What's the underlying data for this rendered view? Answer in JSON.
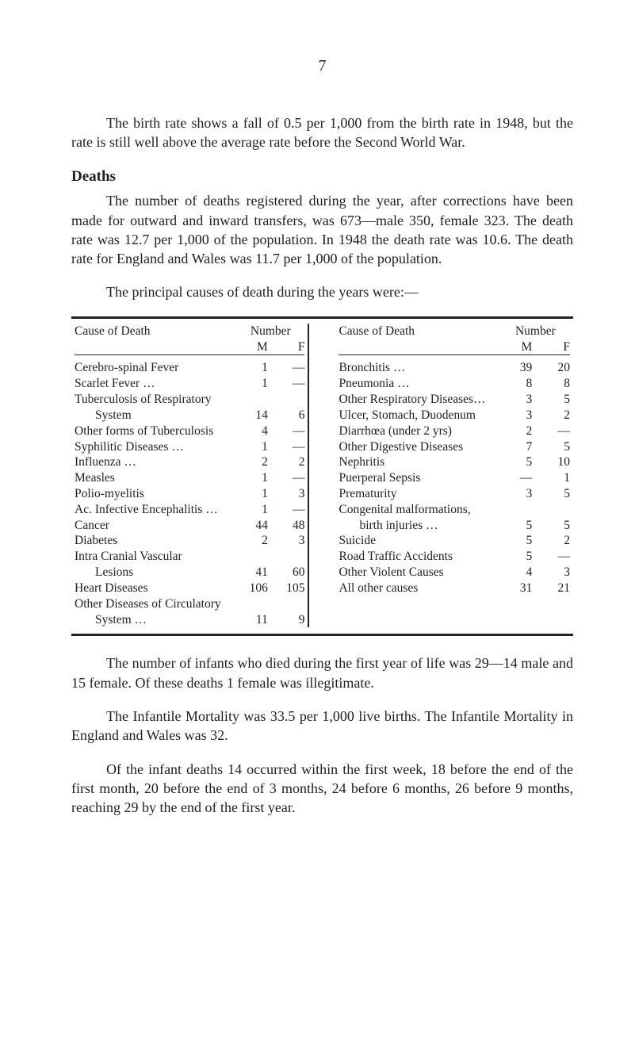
{
  "page_number": "7",
  "para1": "The birth rate shows a fall of 0.5 per 1,000 from the birth rate in 1948, but the rate is still well above the average rate before the Second World War.",
  "deaths_heading": "Deaths",
  "para2": "The number of deaths registered during the year, after corrections have been made for outward and inward transfers, was 673—male 350, female 323. The death rate was 12.7 per 1,000 of the population. In 1948 the death rate was 10.6. The death rate for England and Wales was 11.7 per 1,000 of the population.",
  "para3": "The principal causes of death during the years were:—",
  "table": {
    "dash": "—",
    "head_cause": "Cause of Death",
    "head_number": "Number",
    "head_M": "M",
    "head_F": "F",
    "left": [
      {
        "label": "Cerebro-spinal Fever",
        "m": "1",
        "f": "—"
      },
      {
        "label": "Scarlet Fever …",
        "m": "1",
        "f": "—"
      },
      {
        "label": "Tuberculosis of Respiratory",
        "m": "",
        "f": ""
      },
      {
        "label": "System",
        "sub": true,
        "m": "14",
        "f": "6"
      },
      {
        "label": "Other forms of Tuberculosis",
        "m": "4",
        "f": "—"
      },
      {
        "label": "Syphilitic Diseases …",
        "m": "1",
        "f": "—"
      },
      {
        "label": "Influenza …",
        "m": "2",
        "f": "2"
      },
      {
        "label": "Measles",
        "m": "1",
        "f": "—"
      },
      {
        "label": "Polio-myelitis",
        "m": "1",
        "f": "3"
      },
      {
        "label": "Ac. Infective Encephalitis …",
        "m": "1",
        "f": "—"
      },
      {
        "label": "Cancer",
        "m": "44",
        "f": "48"
      },
      {
        "label": "Diabetes",
        "m": "2",
        "f": "3"
      },
      {
        "label": "Intra Cranial Vascular",
        "m": "",
        "f": ""
      },
      {
        "label": "Lesions",
        "sub": true,
        "m": "41",
        "f": "60"
      },
      {
        "label": "Heart Diseases",
        "m": "106",
        "f": "105"
      },
      {
        "label": "Other Diseases of Circulatory",
        "m": "",
        "f": ""
      },
      {
        "label": "System …",
        "sub": true,
        "m": "11",
        "f": "9"
      }
    ],
    "right": [
      {
        "label": "Bronchitis …",
        "m": "39",
        "f": "20"
      },
      {
        "label": "Pneumonia …",
        "m": "8",
        "f": "8"
      },
      {
        "label": "Other Respiratory Diseases…",
        "m": "3",
        "f": "5"
      },
      {
        "label": "Ulcer, Stomach, Duodenum",
        "m": "3",
        "f": "2"
      },
      {
        "label": "Diarrhœa (under 2 yrs)",
        "m": "2",
        "f": "—"
      },
      {
        "label": "Other Digestive Diseases",
        "m": "7",
        "f": "5"
      },
      {
        "label": "Nephritis",
        "m": "5",
        "f": "10"
      },
      {
        "label": "Puerperal Sepsis",
        "m": "—",
        "f": "1"
      },
      {
        "label": "Prematurity",
        "m": "3",
        "f": "5"
      },
      {
        "label": "Congenital malformations,",
        "m": "",
        "f": ""
      },
      {
        "label": "birth injuries …",
        "sub": true,
        "m": "5",
        "f": "5"
      },
      {
        "label": "Suicide",
        "m": "5",
        "f": "2"
      },
      {
        "label": "Road Traffic Accidents",
        "m": "5",
        "f": "—"
      },
      {
        "label": "Other Violent Causes",
        "m": "4",
        "f": "3"
      },
      {
        "label": "All other causes",
        "m": "31",
        "f": "21"
      }
    ]
  },
  "para4": "The number of infants who died during the first year of life was 29—14 male and 15 female. Of these deaths 1 female was illegitimate.",
  "para5": "The Infantile Mortality was 33.5 per 1,000 live births. The Infantile Mortality in England and Wales was 32.",
  "para6": "Of the infant deaths 14 occurred within the first week, 18 before the end of the first month, 20 before the end of 3 months, 24 before 6 months, 26 before 9 months, reaching 29 by the end of the first year."
}
